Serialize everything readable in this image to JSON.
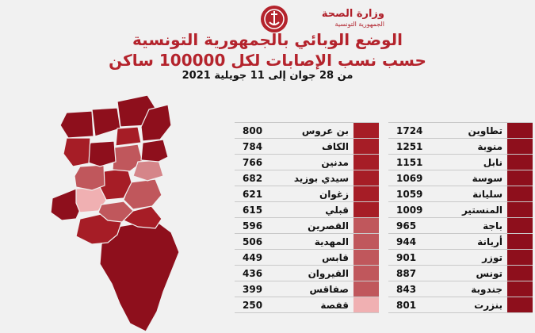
{
  "header": {
    "logo_main": "وزارة الصحة",
    "logo_sub": "الجمهورية التونسية",
    "title_line1": "الوضع الوبائي بالجمهورية التونسية",
    "title_line2": "حسب نسب الإصابات لكل 100000 ساكن",
    "subtitle": "من 28 جوان إلى 11 جويلية 2021"
  },
  "colors": {
    "deep": "#8e0f1c",
    "dark": "#a61d26",
    "medium": "#c0575c",
    "light": "#d58589",
    "pale": "#f0b0b2",
    "brand": "#b4232c"
  },
  "chart_data": {
    "type": "table",
    "title": "حسب نسب الإصابات لكل 100000 ساكن",
    "columns": [
      [
        {
          "name": "تطاوين",
          "value": 1724,
          "shade": "deep"
        },
        {
          "name": "منوبة",
          "value": 1251,
          "shade": "deep"
        },
        {
          "name": "نابل",
          "value": 1151,
          "shade": "deep"
        },
        {
          "name": "سوسة",
          "value": 1069,
          "shade": "deep"
        },
        {
          "name": "سليانة",
          "value": 1059,
          "shade": "deep"
        },
        {
          "name": "المنستير",
          "value": 1009,
          "shade": "deep"
        },
        {
          "name": "باجة",
          "value": 965,
          "shade": "deep"
        },
        {
          "name": "أريانة",
          "value": 944,
          "shade": "deep"
        },
        {
          "name": "توزر",
          "value": 901,
          "shade": "deep"
        },
        {
          "name": "تونس",
          "value": 887,
          "shade": "deep"
        },
        {
          "name": "جندوبة",
          "value": 843,
          "shade": "deep"
        },
        {
          "name": "بنزرت",
          "value": 801,
          "shade": "deep"
        }
      ],
      [
        {
          "name": "بن عروس",
          "value": 800,
          "shade": "dark"
        },
        {
          "name": "الكاف",
          "value": 784,
          "shade": "dark"
        },
        {
          "name": "مدنين",
          "value": 766,
          "shade": "dark"
        },
        {
          "name": "سيدي بوزيد",
          "value": 682,
          "shade": "dark"
        },
        {
          "name": "زغوان",
          "value": 621,
          "shade": "dark"
        },
        {
          "name": "قبلي",
          "value": 615,
          "shade": "dark"
        },
        {
          "name": "القصرين",
          "value": 596,
          "shade": "medium"
        },
        {
          "name": "المهدية",
          "value": 506,
          "shade": "medium"
        },
        {
          "name": "قابس",
          "value": 449,
          "shade": "medium"
        },
        {
          "name": "القيروان",
          "value": 436,
          "shade": "medium"
        },
        {
          "name": "صفاقس",
          "value": 399,
          "shade": "medium"
        },
        {
          "name": "قفصة",
          "value": 250,
          "shade": "pale"
        }
      ]
    ]
  }
}
